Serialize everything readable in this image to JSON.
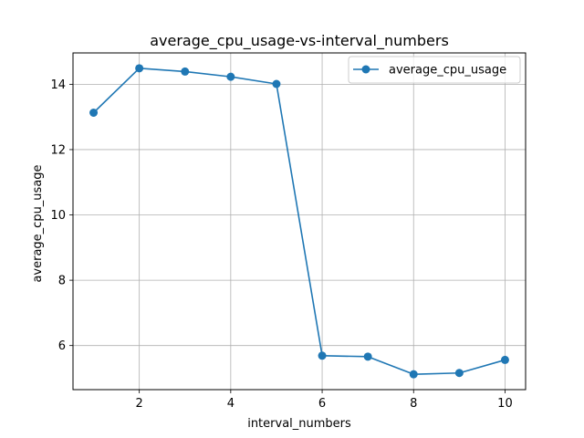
{
  "chart_data": {
    "type": "line",
    "title": "average_cpu_usage-vs-interval_numbers",
    "xlabel": "interval_numbers",
    "ylabel": "average_cpu_usage",
    "x": [
      1,
      2,
      3,
      4,
      5,
      6,
      7,
      8,
      9,
      10
    ],
    "series": [
      {
        "name": "average_cpu_usage",
        "values": [
          13.13,
          14.49,
          14.39,
          14.23,
          14.01,
          5.69,
          5.66,
          5.12,
          5.16,
          5.56
        ],
        "color": "#1f77b4",
        "marker": "circle"
      }
    ],
    "xlim": [
      0.55,
      10.45
    ],
    "ylim": [
      4.65,
      14.96
    ],
    "xticks": [
      2,
      4,
      6,
      8,
      10
    ],
    "yticks": [
      6,
      8,
      10,
      12,
      14
    ],
    "xtick_labels": [
      "2",
      "4",
      "6",
      "8",
      "10"
    ],
    "ytick_labels": [
      "6",
      "8",
      "10",
      "12",
      "14"
    ],
    "grid": true,
    "legend": "upper right"
  }
}
